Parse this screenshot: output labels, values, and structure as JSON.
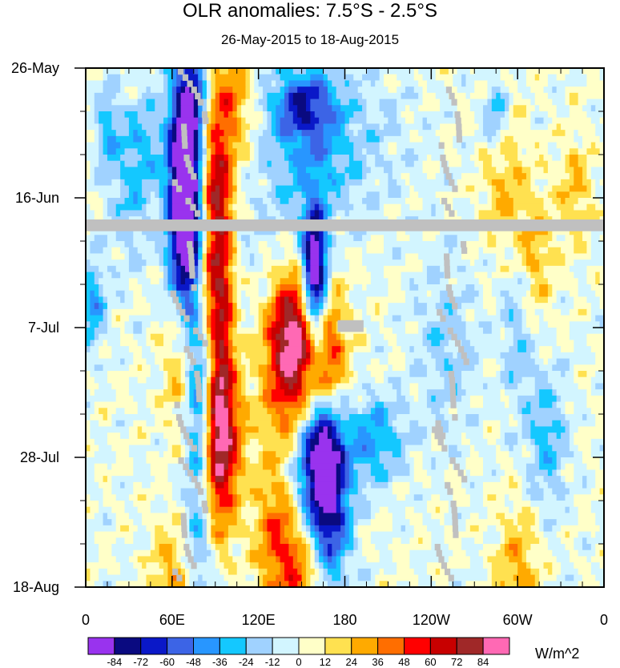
{
  "chart_data": {
    "type": "heatmap",
    "title": "OLR anomalies: 7.5°S - 2.5°S",
    "subtitle": "26-May-2015 to 18-Aug-2015",
    "x_axis": {
      "ticks": [
        "0",
        "60E",
        "120E",
        "180",
        "120W",
        "60W",
        "0"
      ],
      "tick_longitudes": [
        0,
        60,
        120,
        180,
        240,
        300,
        360
      ],
      "range": [
        0,
        360
      ]
    },
    "y_axis": {
      "ticks": [
        "26-May",
        "16-Jun",
        "7-Jul",
        "28-Jul",
        "18-Aug"
      ],
      "tick_day_offsets": [
        0,
        21,
        42,
        63,
        84
      ],
      "range": [
        "26-May-2015",
        "18-Aug-2015"
      ],
      "direction": "time increases downward"
    },
    "colorbar": {
      "units": "W/m^2",
      "labels": [
        "-84",
        "-72",
        "-60",
        "-48",
        "-36",
        "-24",
        "-12",
        "0",
        "12",
        "24",
        "36",
        "48",
        "60",
        "72",
        "84"
      ],
      "levels": [
        -84,
        -72,
        -60,
        -48,
        -36,
        -24,
        -12,
        0,
        12,
        24,
        36,
        48,
        60,
        72,
        84
      ],
      "colors": [
        "#9933ee",
        "#0a0a80",
        "#0a18c8",
        "#3c64e6",
        "#2896ff",
        "#14c8ff",
        "#a0d2ff",
        "#d2f5ff",
        "#ffffc8",
        "#ffe150",
        "#ffaa00",
        "#ff6e00",
        "#ff0000",
        "#c80000",
        "#a02828",
        "#ff69b4"
      ]
    },
    "missing_color": "#c0c0c0",
    "grid": false
  }
}
